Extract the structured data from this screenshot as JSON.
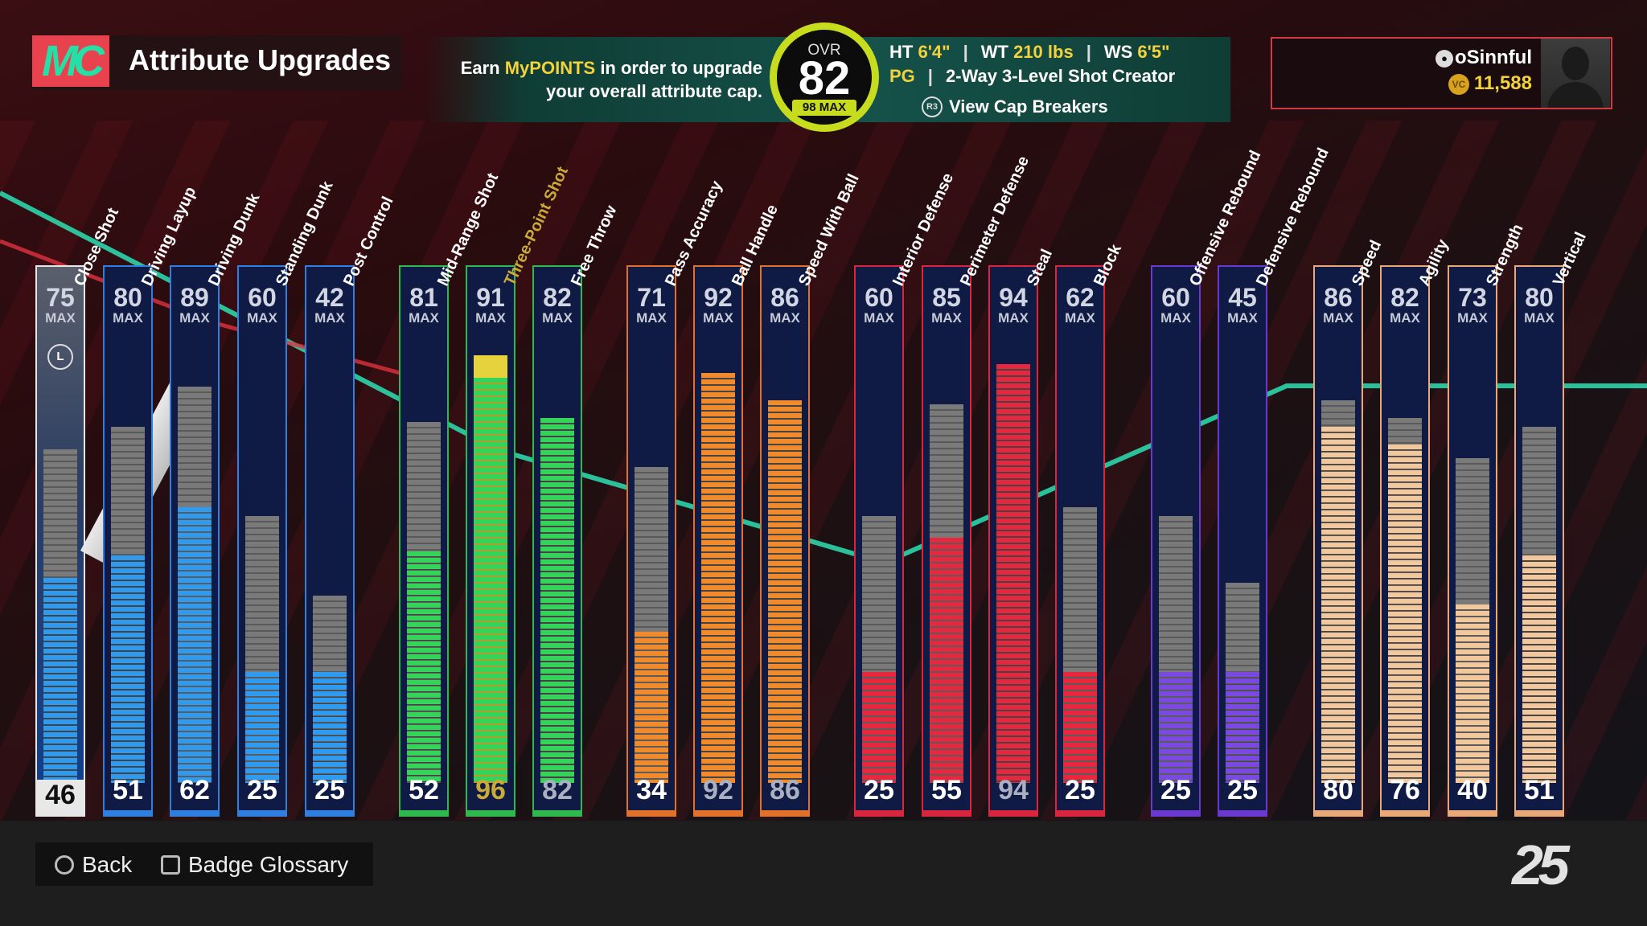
{
  "header": {
    "logo_text": "MC",
    "title": "Attribute Upgrades",
    "earn_prefix": "Earn ",
    "earn_highlight": "MyPOINTS",
    "earn_suffix": " in order to upgrade",
    "earn_line2": "your overall attribute cap.",
    "ovr_label": "OVR",
    "ovr_value": "82",
    "ovr_max": "98 MAX",
    "ht_label": "HT",
    "ht_value": "6'4\"",
    "wt_label": "WT",
    "wt_value": "210 lbs",
    "ws_label": "WS",
    "ws_value": "6'5\"",
    "position": "PG",
    "archetype": "2-Way 3-Level Shot Creator",
    "cap_icon": "R3",
    "cap_breakers_label": "View Cap Breakers",
    "separator": "|"
  },
  "user": {
    "ps_icon": "playstation-icon",
    "name": "oSinnful",
    "vc_icon": "VC",
    "vc_amount": "11,588"
  },
  "max_label": "MAX",
  "attributes": [
    {
      "name": "Close Shot",
      "cap": "75",
      "current": "46",
      "current_num": 46,
      "cap_num": 75,
      "color": "#2f9bf0",
      "group_color": "#e6e6e6",
      "selected": true,
      "badge": "L"
    },
    {
      "name": "Driving Layup",
      "cap": "80",
      "current": "51",
      "current_num": 51,
      "cap_num": 80,
      "color": "#2f9bf0",
      "group_color": "#2f7fe0"
    },
    {
      "name": "Driving Dunk",
      "cap": "89",
      "current": "62",
      "current_num": 62,
      "cap_num": 89,
      "color": "#2f9bf0",
      "group_color": "#2f7fe0"
    },
    {
      "name": "Standing Dunk",
      "cap": "60",
      "current": "25",
      "current_num": 25,
      "cap_num": 60,
      "color": "#2f9bf0",
      "group_color": "#2f7fe0"
    },
    {
      "name": "Post Control",
      "cap": "42",
      "current": "25",
      "current_num": 25,
      "cap_num": 42,
      "color": "#2f9bf0",
      "group_color": "#2f7fe0"
    },
    {
      "name": "Mid-Range Shot",
      "cap": "81",
      "current": "52",
      "current_num": 52,
      "cap_num": 81,
      "color": "#36d35a",
      "group_color": "#2fb84e"
    },
    {
      "name": "Three-Point Shot",
      "cap": "91",
      "current": "96",
      "current_num": 91,
      "cap_num": 91,
      "upgrade_num": 96,
      "color": "#36d35a",
      "group_color": "#2fb84e",
      "name_color": "#c9a93a",
      "current_color": "#c9a93a"
    },
    {
      "name": "Free Throw",
      "cap": "82",
      "current": "82",
      "current_num": 82,
      "cap_num": 82,
      "color": "#36d35a",
      "group_color": "#2fb84e",
      "current_color": "#aab0c0"
    },
    {
      "name": "Pass Accuracy",
      "cap": "71",
      "current": "34",
      "current_num": 34,
      "cap_num": 71,
      "color": "#f08a2a",
      "group_color": "#e0702a"
    },
    {
      "name": "Ball Handle",
      "cap": "92",
      "current": "92",
      "current_num": 92,
      "cap_num": 92,
      "color": "#f08a2a",
      "group_color": "#e0702a",
      "current_color": "#aab0c0"
    },
    {
      "name": "Speed With Ball",
      "cap": "86",
      "current": "86",
      "current_num": 86,
      "cap_num": 86,
      "color": "#f08a2a",
      "group_color": "#e0702a",
      "current_color": "#aab0c0"
    },
    {
      "name": "Interior Defense",
      "cap": "60",
      "current": "25",
      "current_num": 25,
      "cap_num": 60,
      "color": "#e8263e",
      "group_color": "#d8263e"
    },
    {
      "name": "Perimeter Defense",
      "cap": "85",
      "current": "55",
      "current_num": 55,
      "cap_num": 85,
      "color": "#e8263e",
      "group_color": "#d8263e"
    },
    {
      "name": "Steal",
      "cap": "94",
      "current": "94",
      "current_num": 94,
      "cap_num": 94,
      "color": "#e8263e",
      "group_color": "#d8263e",
      "current_color": "#aab0c0"
    },
    {
      "name": "Block",
      "cap": "62",
      "current": "25",
      "current_num": 25,
      "cap_num": 62,
      "color": "#e8263e",
      "group_color": "#d8263e"
    },
    {
      "name": "Offensive Rebound",
      "cap": "60",
      "current": "25",
      "current_num": 25,
      "cap_num": 60,
      "color": "#7a4ae0",
      "group_color": "#6a3ad0"
    },
    {
      "name": "Defensive Rebound",
      "cap": "45",
      "current": "25",
      "current_num": 25,
      "cap_num": 45,
      "color": "#7a4ae0",
      "group_color": "#6a3ad0"
    },
    {
      "name": "Speed",
      "cap": "86",
      "current": "80",
      "current_num": 80,
      "cap_num": 86,
      "color": "#f3c79c",
      "group_color": "#e8a878"
    },
    {
      "name": "Agility",
      "cap": "82",
      "current": "76",
      "current_num": 76,
      "cap_num": 82,
      "color": "#f3c79c",
      "group_color": "#e8a878"
    },
    {
      "name": "Strength",
      "cap": "73",
      "current": "40",
      "current_num": 40,
      "cap_num": 73,
      "color": "#f3c79c",
      "group_color": "#e8a878"
    },
    {
      "name": "Vertical",
      "cap": "80",
      "current": "51",
      "current_num": 51,
      "cap_num": 80,
      "color": "#f3c79c",
      "group_color": "#e8a878"
    }
  ],
  "footer": {
    "back_label": "Back",
    "glossary_label": "Badge Glossary",
    "logo": "25"
  }
}
